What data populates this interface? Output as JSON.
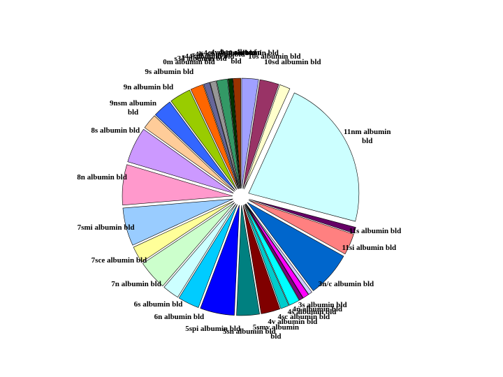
{
  "chart_data": {
    "type": "pie",
    "categories": [
      "10n albumin bld",
      "10s albumin bld",
      "10sd albumin bld",
      "11nm albumin bld",
      "11s albumin bld",
      "11si albumin bld",
      "3n/c albumin bld",
      "3s albumin bld",
      "4n albumin bld",
      "4s albumin bld",
      "4sc albumin bld",
      "4v albumin bld",
      "5smv albumin bld",
      "5sn albumin bld",
      "5spi albumin bld",
      "6n albumin bld",
      "6s albumin bld",
      "7n albumin bld",
      "7sce albumin bld",
      "7smi albumin bld",
      "8n albumin bld",
      "8s albumin bld",
      "9nsm albumin bld",
      "9n albumin bld",
      "9s albumin bld",
      "0m albumin bld",
      "s34 albumin bld",
      "s44 albumin bld",
      "s4h albumin bld",
      "s4cc albumin bld",
      "4vdsm albumin bld"
    ],
    "values": [
      2.2,
      2.5,
      1.4,
      20,
      0.8,
      2.8,
      6,
      0.5,
      0.8,
      0.5,
      1.4,
      1.1,
      2.5,
      3,
      4.5,
      2.8,
      2.2,
      3.9,
      2.2,
      5,
      5.3,
      4.7,
      2,
      2.5,
      2.8,
      1.7,
      0.8,
      0.8,
      1.4,
      0.6,
      1
    ],
    "colors": [
      "#a0a0ff",
      "#993366",
      "#ffffcc",
      "#ccffff",
      "#660066",
      "#ff8080",
      "#0066cc",
      "#ccccff",
      "#ff00ff",
      "#800080",
      "#00ffff",
      "#00cccc",
      "#800000",
      "#008080",
      "#0000ff",
      "#00ccff",
      "#ccffff",
      "#ccffcc",
      "#ffff99",
      "#99ccff",
      "#ff99cc",
      "#cc99ff",
      "#ffcc99",
      "#3366ff",
      "#99cc00",
      "#ff6600",
      "#666699",
      "#969696",
      "#339966",
      "#003300",
      "#993300"
    ]
  }
}
